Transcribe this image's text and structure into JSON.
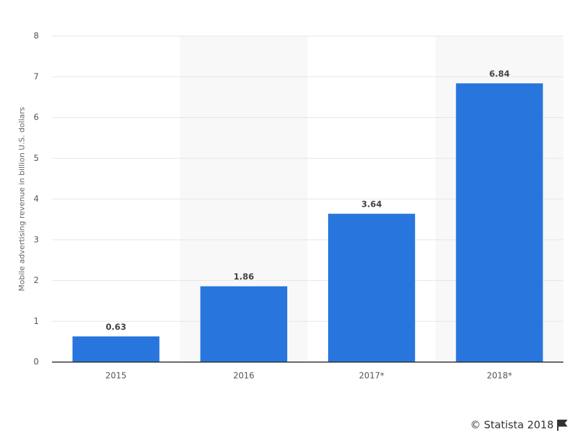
{
  "chart_data": {
    "type": "bar",
    "y_label": "Mobile advertising revenue in billion U.S. dollars",
    "categories": [
      "2015",
      "2016",
      "2017*",
      "2018*"
    ],
    "values": [
      0.63,
      1.86,
      3.64,
      6.84
    ],
    "color": "#2876dd",
    "ylim": [
      0,
      8
    ],
    "yticks": [
      0,
      1,
      2,
      3,
      4,
      5,
      6,
      7,
      8
    ],
    "grid": true,
    "source": "© Statista 2018"
  }
}
